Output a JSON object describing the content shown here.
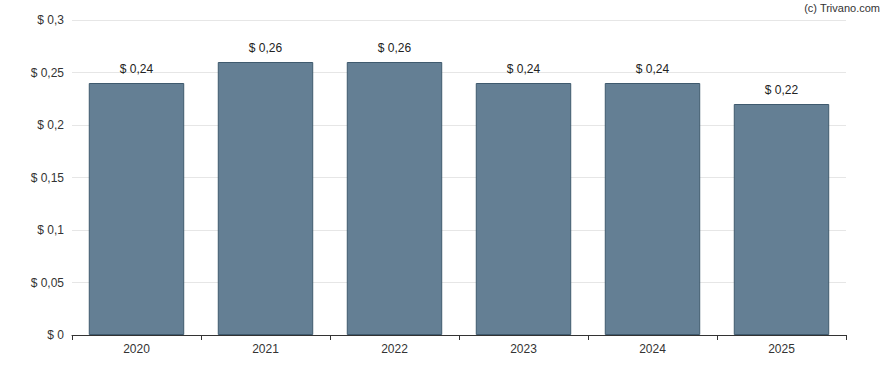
{
  "chart_data": {
    "type": "bar",
    "annotations": [
      "(c) Trivano.com"
    ],
    "categories": [
      "2020",
      "2021",
      "2022",
      "2023",
      "2024",
      "2025"
    ],
    "values": [
      0.24,
      0.26,
      0.26,
      0.24,
      0.24,
      0.22
    ],
    "value_labels": [
      "$ 0,24",
      "$ 0,26",
      "$ 0,26",
      "$ 0,24",
      "$ 0,24",
      "$ 0,22"
    ],
    "color": "#647f94",
    "ylim": [
      0,
      0.3
    ],
    "yticks": [
      {
        "value": 0,
        "label": "$ 0"
      },
      {
        "value": 0.05,
        "label": "$ 0,05"
      },
      {
        "value": 0.1,
        "label": "$ 0,1"
      },
      {
        "value": 0.15,
        "label": "$ 0,15"
      },
      {
        "value": 0.2,
        "label": "$ 0,2"
      },
      {
        "value": 0.25,
        "label": "$ 0,25"
      },
      {
        "value": 0.3,
        "label": "$ 0,3"
      }
    ],
    "grid": true,
    "data_labels": true
  }
}
